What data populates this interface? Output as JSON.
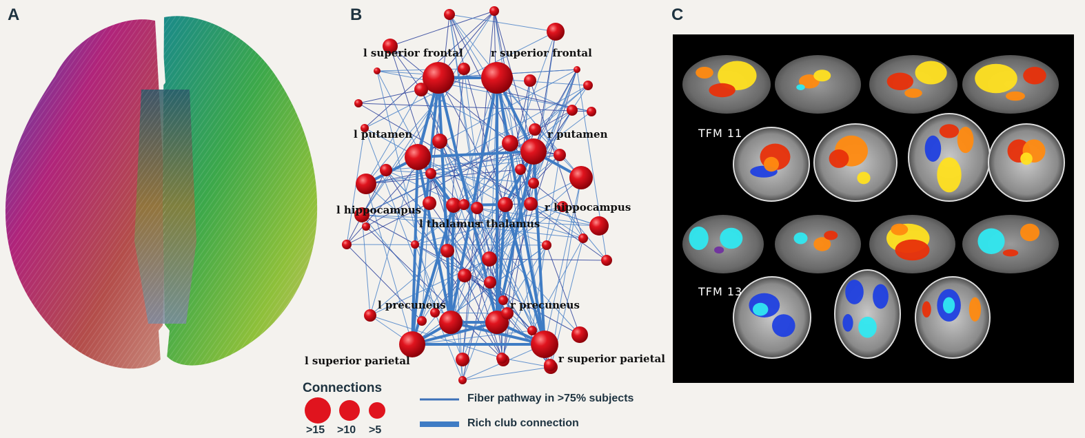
{
  "panels": {
    "a": "A",
    "b": "B",
    "c": "C"
  },
  "network": {
    "labels": {
      "l_sup_frontal": "l superior frontal",
      "r_sup_frontal": "r superior frontal",
      "l_putamen": "l putamen",
      "r_putamen": "r putamen",
      "l_hippocampus": "l hippocampus",
      "r_hippocampus": "r hippocampus",
      "l_thalamus": "l thalamus",
      "r_thalamus": "r thalamus",
      "l_precuneus": "l precuneus",
      "r_precuneus": "r precuneus",
      "l_sup_parietal": "l superior parietal",
      "r_sup_parietal": "r superior parietal"
    },
    "node_color": "#d8141c",
    "edge_color": "#3c70b8",
    "rich_club_color": "#3f7cc4"
  },
  "legend": {
    "title": "Connections",
    "sizes": [
      ">15",
      ">10",
      ">5"
    ],
    "fiber_label": "Fiber pathway in >75% subjects",
    "rich_label": "Rich club connection"
  },
  "tfm": {
    "tfm11": "TFM 11",
    "tfm13": "TFM 13"
  }
}
